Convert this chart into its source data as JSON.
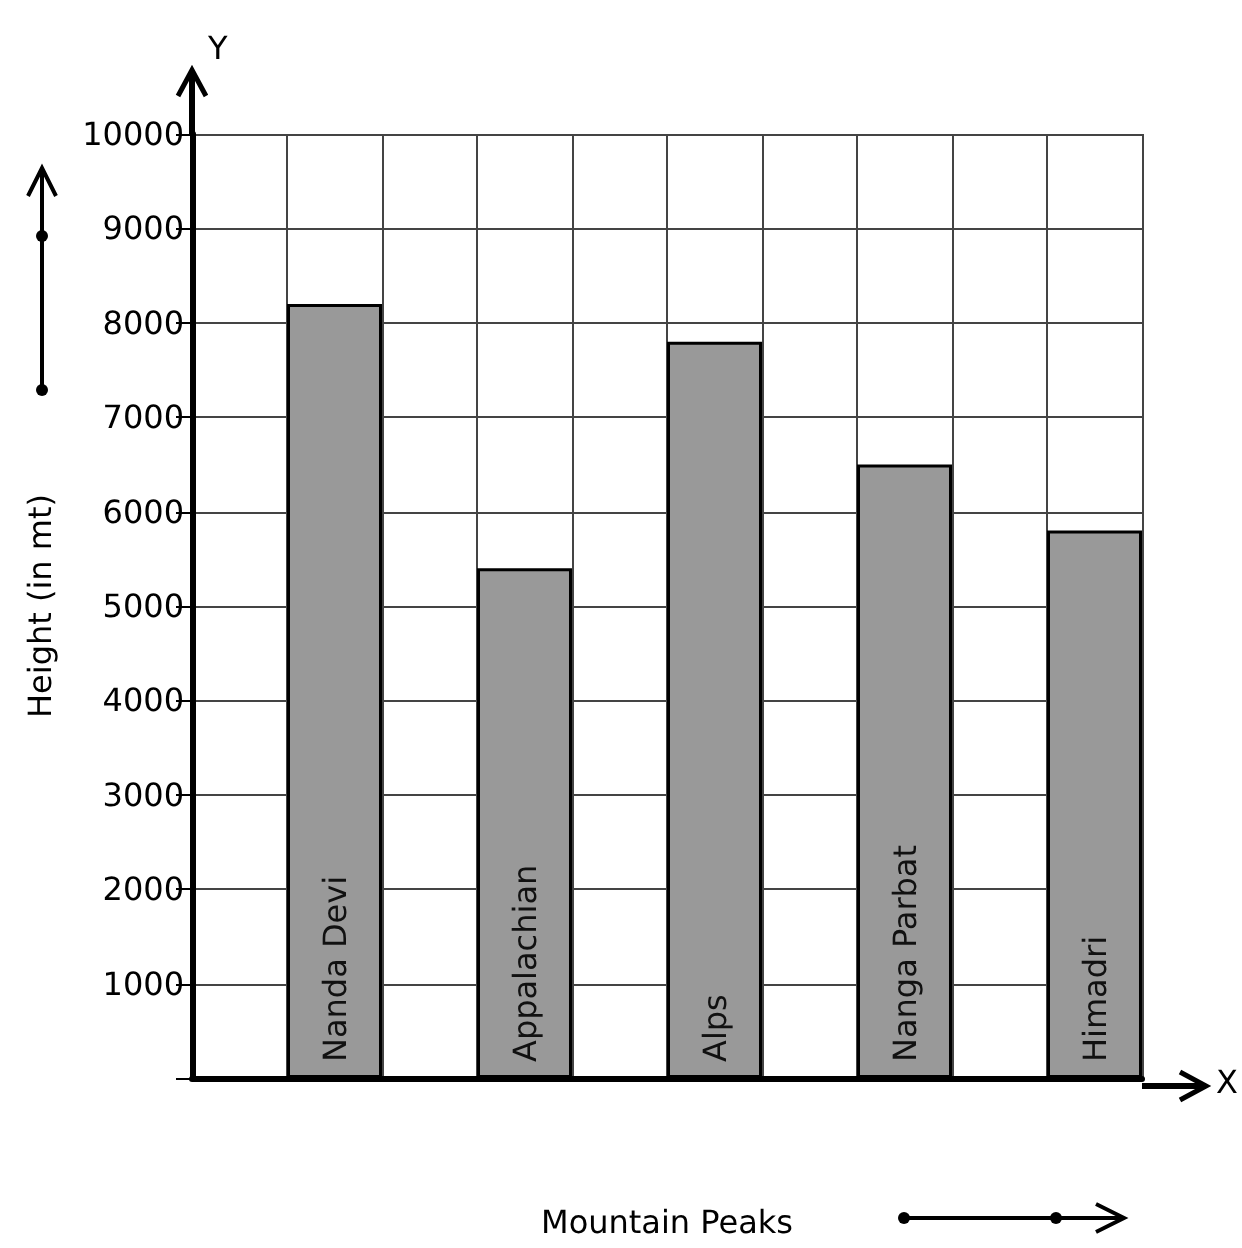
{
  "chart_data": {
    "type": "bar",
    "xlabel": "Mountain Peaks",
    "ylabel": "Height (in mt)",
    "categories": [
      null,
      "Nanda Devi",
      null,
      "Appalachian",
      null,
      "Alps",
      null,
      "Nanga Parbat",
      null,
      "Himadri"
    ],
    "values": [
      null,
      8200,
      null,
      5400,
      null,
      7800,
      null,
      6500,
      null,
      5800
    ],
    "color": "#999999",
    "ylim": [
      0,
      10000
    ],
    "yticks": [
      {
        "value": 0,
        "label": null
      },
      1000,
      2000,
      3000,
      4000,
      5000,
      6000,
      7000,
      8000,
      9000,
      10000
    ],
    "annotations": [
      "Y",
      "X"
    ],
    "grid": true
  }
}
